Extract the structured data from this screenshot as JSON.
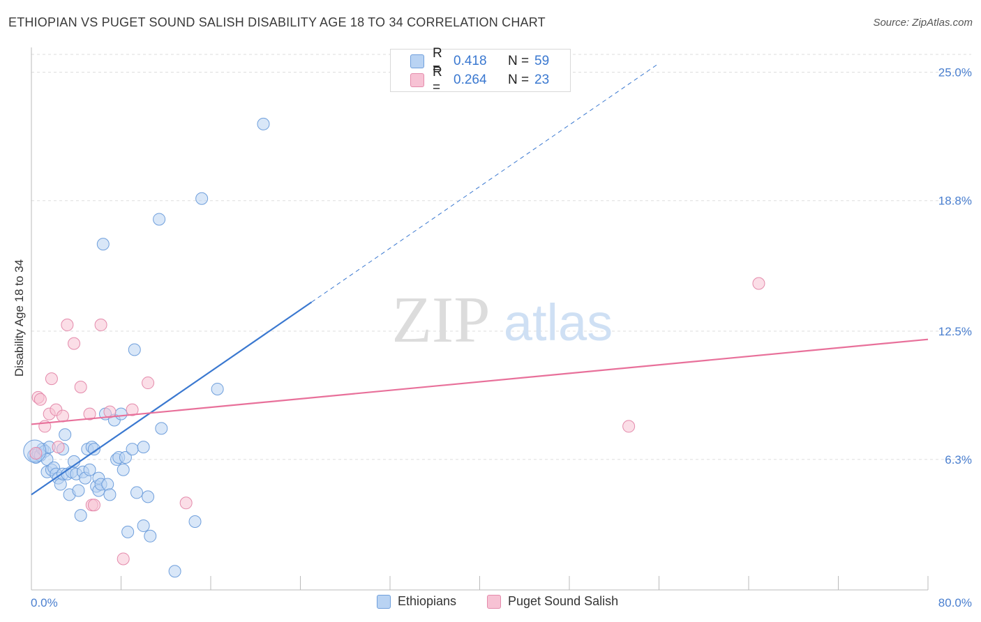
{
  "header": {
    "title": "ETHIOPIAN VS PUGET SOUND SALISH DISABILITY AGE 18 TO 34 CORRELATION CHART",
    "source": "Source: ZipAtlas.com"
  },
  "watermark": {
    "zip": "ZIP",
    "atlas": "atlas"
  },
  "colors": {
    "blue": "#3a78d0",
    "blue_fill": "#b9d3f3",
    "pink": "#e8709a",
    "pink_fill": "#f7c2d4",
    "grid": "#dddddd",
    "tick_text": "#4a7fcf"
  },
  "legend": {
    "rows": [
      {
        "r_label": "R =",
        "r_value": "0.418",
        "n_label": "N =",
        "n_value": "59"
      },
      {
        "r_label": "R =",
        "r_value": "0.264",
        "n_label": "N =",
        "n_value": "23"
      }
    ]
  },
  "bottom_legend": {
    "items": [
      {
        "label": "Ethiopians"
      },
      {
        "label": "Puget Sound Salish"
      }
    ]
  },
  "chart_data": {
    "type": "scatter",
    "title": "ETHIOPIAN VS PUGET SOUND SALISH DISABILITY AGE 18 TO 34 CORRELATION CHART",
    "xlabel": "",
    "ylabel": "Disability Age 18 to 34",
    "xlim": [
      0,
      80
    ],
    "ylim": [
      0,
      26.2
    ],
    "x_tick_labels": [
      "0.0%",
      "80.0%"
    ],
    "y_ticks": [
      6.3,
      12.5,
      18.8,
      25.0
    ],
    "y_tick_labels": [
      "6.3%",
      "12.5%",
      "18.8%",
      "25.0%"
    ],
    "grid": true,
    "series": [
      {
        "name": "Ethiopians",
        "r": 0.418,
        "n": 59,
        "trend": {
          "x0": 0,
          "y0": 4.6,
          "x1": 25,
          "y1": 13.9,
          "dash_to_x": 56
        },
        "points": [
          [
            0.2,
            6.5
          ],
          [
            0.4,
            6.4
          ],
          [
            0.6,
            6.6
          ],
          [
            0.8,
            6.5
          ],
          [
            1.0,
            6.8
          ],
          [
            1.2,
            6.7
          ],
          [
            1.4,
            6.3
          ],
          [
            1.4,
            5.7
          ],
          [
            1.6,
            6.9
          ],
          [
            1.8,
            5.8
          ],
          [
            2.0,
            5.9
          ],
          [
            2.2,
            5.6
          ],
          [
            2.4,
            5.4
          ],
          [
            2.6,
            5.1
          ],
          [
            2.8,
            6.8
          ],
          [
            3.0,
            7.5
          ],
          [
            2.8,
            5.6
          ],
          [
            3.2,
            5.6
          ],
          [
            3.4,
            4.6
          ],
          [
            3.6,
            5.7
          ],
          [
            3.8,
            6.2
          ],
          [
            4.0,
            5.6
          ],
          [
            4.2,
            4.8
          ],
          [
            4.4,
            3.6
          ],
          [
            4.6,
            5.7
          ],
          [
            4.8,
            5.4
          ],
          [
            5.0,
            6.8
          ],
          [
            5.2,
            5.8
          ],
          [
            5.4,
            6.9
          ],
          [
            5.6,
            6.8
          ],
          [
            5.8,
            5.0
          ],
          [
            6.0,
            4.8
          ],
          [
            6.0,
            5.4
          ],
          [
            6.2,
            5.1
          ],
          [
            6.4,
            16.7
          ],
          [
            6.6,
            8.5
          ],
          [
            6.8,
            5.1
          ],
          [
            7.0,
            4.6
          ],
          [
            7.4,
            8.2
          ],
          [
            7.6,
            6.3
          ],
          [
            7.8,
            6.4
          ],
          [
            8.0,
            8.5
          ],
          [
            8.2,
            5.8
          ],
          [
            8.4,
            6.4
          ],
          [
            8.6,
            2.8
          ],
          [
            9.0,
            6.8
          ],
          [
            9.2,
            11.6
          ],
          [
            9.4,
            4.7
          ],
          [
            10.0,
            3.1
          ],
          [
            10.0,
            6.9
          ],
          [
            10.4,
            4.5
          ],
          [
            10.6,
            2.6
          ],
          [
            11.4,
            17.9
          ],
          [
            11.6,
            7.8
          ],
          [
            12.8,
            0.9
          ],
          [
            14.6,
            3.3
          ],
          [
            15.2,
            18.9
          ],
          [
            16.6,
            9.7
          ],
          [
            20.7,
            22.5
          ]
        ]
      },
      {
        "name": "Puget Sound Salish",
        "r": 0.264,
        "n": 23,
        "trend": {
          "x0": 0,
          "y0": 8.0,
          "x1": 80,
          "y1": 12.1
        },
        "points": [
          [
            0.4,
            6.6
          ],
          [
            0.6,
            9.3
          ],
          [
            0.8,
            9.2
          ],
          [
            1.2,
            7.9
          ],
          [
            1.6,
            8.5
          ],
          [
            1.8,
            10.2
          ],
          [
            2.2,
            8.7
          ],
          [
            2.4,
            6.9
          ],
          [
            2.8,
            8.4
          ],
          [
            3.2,
            12.8
          ],
          [
            3.8,
            11.9
          ],
          [
            4.4,
            9.8
          ],
          [
            5.2,
            8.5
          ],
          [
            5.4,
            4.1
          ],
          [
            5.6,
            4.1
          ],
          [
            6.2,
            12.8
          ],
          [
            7.0,
            8.6
          ],
          [
            8.2,
            1.5
          ],
          [
            9.0,
            8.7
          ],
          [
            10.4,
            10.0
          ],
          [
            13.8,
            4.2
          ],
          [
            53.3,
            7.9
          ],
          [
            64.9,
            14.8
          ]
        ]
      }
    ]
  }
}
